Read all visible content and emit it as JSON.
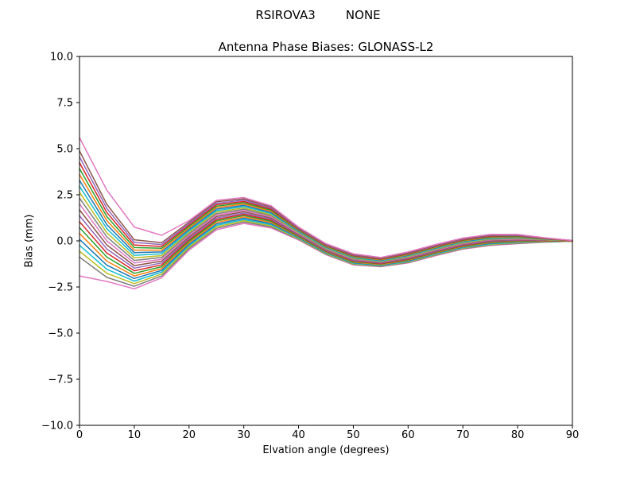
{
  "header": {
    "suptitle": "RSIROVA3        NONE",
    "title": "Antenna Phase Biases: GLONASS-L2"
  },
  "chart_data": {
    "type": "line",
    "suptitle": "RSIROVA3        NONE",
    "title": "Antenna Phase Biases: GLONASS-L2",
    "xlabel": "Elvation angle (degrees)",
    "ylabel": "Bias (mm)",
    "xlim": [
      0,
      90
    ],
    "ylim": [
      -10,
      10
    ],
    "grid": false,
    "legend": "none",
    "x_ticks": [
      0,
      10,
      20,
      30,
      40,
      50,
      60,
      70,
      80,
      90
    ],
    "x_tick_labels": [
      "0",
      "10",
      "20",
      "30",
      "40",
      "50",
      "60",
      "70",
      "80",
      "90"
    ],
    "y_ticks": [
      10,
      7.5,
      5,
      2.5,
      0,
      -2.5,
      -5,
      -7.5,
      -10
    ],
    "y_tick_labels": [
      "10.0",
      "7.5",
      "5.0",
      "2.5",
      "0.0",
      "−2.5",
      "−5.0",
      "−7.5",
      "−10.0"
    ],
    "x": [
      0,
      5,
      10,
      15,
      20,
      25,
      30,
      35,
      40,
      45,
      50,
      55,
      60,
      65,
      70,
      75,
      80,
      85,
      90
    ],
    "series": [
      {
        "name": "line-01",
        "color": "#e377c2",
        "values": [
          -1.9,
          -2.2,
          -2.6,
          -2.0,
          -0.5,
          0.6,
          0.95,
          0.7,
          0.05,
          -0.75,
          -1.3,
          -1.4,
          -1.2,
          -0.8,
          -0.45,
          -0.25,
          -0.15,
          -0.07,
          -0.02
        ]
      },
      {
        "name": "line-02",
        "color": "#7f7f7f",
        "values": [
          -0.88,
          -1.98,
          -2.46,
          -1.9,
          -0.42,
          0.68,
          1.02,
          0.76,
          0.09,
          -0.72,
          -1.27,
          -1.38,
          -1.17,
          -0.77,
          -0.42,
          -0.22,
          -0.13,
          -0.06,
          -0.02
        ]
      },
      {
        "name": "line-03",
        "color": "#bcbd22",
        "values": [
          -0.56,
          -1.76,
          -2.32,
          -1.8,
          -0.34,
          0.76,
          1.09,
          0.82,
          0.12,
          -0.69,
          -1.24,
          -1.35,
          -1.14,
          -0.74,
          -0.39,
          -0.19,
          -0.1,
          -0.05,
          -0.02
        ]
      },
      {
        "name": "line-04",
        "color": "#17becf",
        "values": [
          -0.24,
          -1.54,
          -2.18,
          -1.7,
          -0.26,
          0.84,
          1.16,
          0.88,
          0.16,
          -0.66,
          -1.21,
          -1.33,
          -1.11,
          -0.71,
          -0.36,
          -0.16,
          -0.08,
          -0.03,
          -0.01
        ]
      },
      {
        "name": "line-05",
        "color": "#1f77b4",
        "values": [
          0.08,
          -1.32,
          -2.04,
          -1.6,
          -0.18,
          0.92,
          1.23,
          0.94,
          0.19,
          -0.63,
          -1.18,
          -1.3,
          -1.08,
          -0.68,
          -0.33,
          -0.13,
          -0.05,
          -0.02,
          -0.01
        ]
      },
      {
        "name": "line-06",
        "color": "#ff7f0e",
        "values": [
          0.4,
          -1.1,
          -1.9,
          -1.5,
          -0.1,
          1.0,
          1.3,
          1.0,
          0.23,
          -0.6,
          -1.15,
          -1.28,
          -1.05,
          -0.65,
          -0.3,
          -0.1,
          -0.03,
          -0.01,
          -0.01
        ]
      },
      {
        "name": "line-07",
        "color": "#2ca02c",
        "values": [
          0.72,
          -0.88,
          -1.76,
          -1.4,
          -0.02,
          1.08,
          1.37,
          1.06,
          0.26,
          -0.57,
          -1.12,
          -1.25,
          -1.02,
          -0.62,
          -0.27,
          -0.07,
          0.0,
          0.0,
          -0.01
        ]
      },
      {
        "name": "line-08",
        "color": "#d62728",
        "values": [
          1.04,
          -0.66,
          -1.62,
          -1.3,
          0.06,
          1.16,
          1.44,
          1.12,
          0.3,
          -0.54,
          -1.09,
          -1.23,
          -0.99,
          -0.59,
          -0.24,
          -0.04,
          0.03,
          0.01,
          -0.01
        ]
      },
      {
        "name": "line-09",
        "color": "#9467bd",
        "values": [
          1.36,
          -0.44,
          -1.48,
          -1.2,
          0.14,
          1.24,
          1.51,
          1.18,
          0.33,
          -0.51,
          -1.06,
          -1.2,
          -0.96,
          -0.56,
          -0.21,
          -0.01,
          0.05,
          0.03,
          0.0
        ]
      },
      {
        "name": "line-10",
        "color": "#8c564b",
        "values": [
          1.68,
          -0.22,
          -1.34,
          -1.1,
          0.22,
          1.32,
          1.58,
          1.24,
          0.37,
          -0.48,
          -1.03,
          -1.18,
          -0.93,
          -0.53,
          -0.18,
          0.02,
          0.08,
          0.04,
          0.0
        ]
      },
      {
        "name": "line-11",
        "color": "#e377c2",
        "values": [
          2.0,
          0.0,
          -1.2,
          -1.0,
          0.3,
          1.4,
          1.65,
          1.3,
          0.4,
          -0.45,
          -1.0,
          -1.15,
          -0.9,
          -0.5,
          -0.15,
          0.05,
          0.1,
          0.05,
          0.0
        ]
      },
      {
        "name": "line-12",
        "color": "#7f7f7f",
        "values": [
          2.32,
          0.22,
          -1.06,
          -0.9,
          0.38,
          1.48,
          1.72,
          1.36,
          0.44,
          -0.42,
          -0.97,
          -1.13,
          -0.87,
          -0.47,
          -0.12,
          0.08,
          0.13,
          0.06,
          0.0
        ]
      },
      {
        "name": "line-13",
        "color": "#bcbd22",
        "values": [
          2.64,
          0.44,
          -0.92,
          -0.8,
          0.46,
          1.56,
          1.79,
          1.42,
          0.47,
          -0.39,
          -0.94,
          -1.1,
          -0.84,
          -0.44,
          -0.09,
          0.11,
          0.15,
          0.07,
          0.0
        ]
      },
      {
        "name": "line-14",
        "color": "#17becf",
        "values": [
          2.96,
          0.66,
          -0.78,
          -0.7,
          0.54,
          1.64,
          1.86,
          1.48,
          0.51,
          -0.36,
          -0.91,
          -1.08,
          -0.81,
          -0.41,
          -0.06,
          0.14,
          0.18,
          0.09,
          0.01
        ]
      },
      {
        "name": "line-15",
        "color": "#1f77b4",
        "values": [
          3.28,
          0.88,
          -0.64,
          -0.6,
          0.62,
          1.72,
          1.93,
          1.54,
          0.54,
          -0.33,
          -0.88,
          -1.05,
          -0.78,
          -0.38,
          -0.03,
          0.17,
          0.2,
          0.1,
          0.01
        ]
      },
      {
        "name": "line-16",
        "color": "#ff7f0e",
        "values": [
          3.6,
          1.1,
          -0.5,
          -0.5,
          0.7,
          1.8,
          2.0,
          1.6,
          0.58,
          -0.3,
          -0.85,
          -1.03,
          -0.75,
          -0.35,
          0.0,
          0.2,
          0.23,
          0.11,
          0.01
        ]
      },
      {
        "name": "line-17",
        "color": "#2ca02c",
        "values": [
          3.92,
          1.32,
          -0.36,
          -0.4,
          0.78,
          1.88,
          2.07,
          1.66,
          0.61,
          -0.27,
          -0.82,
          -1.0,
          -0.72,
          -0.32,
          0.03,
          0.23,
          0.25,
          0.12,
          0.01
        ]
      },
      {
        "name": "line-18",
        "color": "#d62728",
        "values": [
          4.24,
          1.54,
          -0.22,
          -0.3,
          0.86,
          1.96,
          2.14,
          1.72,
          0.65,
          -0.24,
          -0.79,
          -0.98,
          -0.69,
          -0.29,
          0.06,
          0.26,
          0.28,
          0.13,
          0.01
        ]
      },
      {
        "name": "line-19",
        "color": "#9467bd",
        "values": [
          4.56,
          1.76,
          -0.08,
          -0.2,
          0.94,
          2.04,
          2.21,
          1.78,
          0.68,
          -0.21,
          -0.76,
          -0.95,
          -0.66,
          -0.26,
          0.09,
          0.29,
          0.3,
          0.15,
          0.02
        ]
      },
      {
        "name": "line-20",
        "color": "#8c564b",
        "values": [
          4.88,
          1.98,
          0.06,
          -0.1,
          1.02,
          2.12,
          2.28,
          1.84,
          0.72,
          -0.18,
          -0.73,
          -0.93,
          -0.63,
          -0.23,
          0.12,
          0.32,
          0.33,
          0.16,
          0.02
        ]
      },
      {
        "name": "line-21",
        "color": "#e377c2",
        "values": [
          5.6,
          2.75,
          0.75,
          0.3,
          1.1,
          2.2,
          2.35,
          1.9,
          0.75,
          -0.15,
          -0.7,
          -0.9,
          -0.6,
          -0.2,
          0.15,
          0.35,
          0.35,
          0.17,
          0.02
        ]
      }
    ]
  }
}
